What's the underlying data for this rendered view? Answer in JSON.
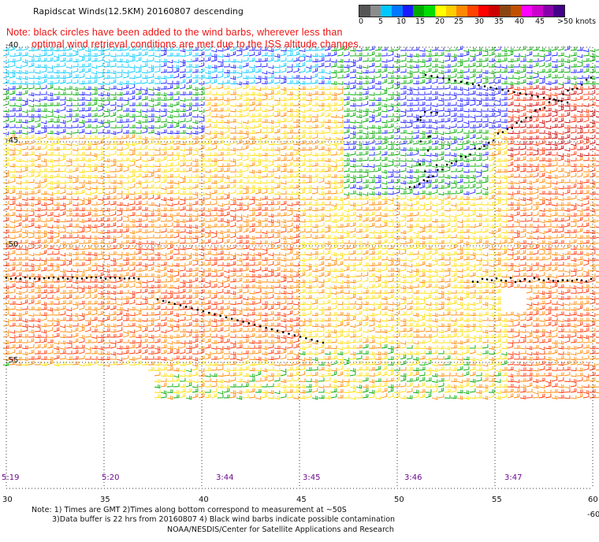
{
  "title": "Rapidscat Winds(12.5KM) 20160807 descending",
  "note": {
    "line1": "Note: black circles have been added to the wind barbs, wherever less than",
    "line2": "optimal wind retrieval conditions are met due to the ISS altitude changes."
  },
  "speed_scale": {
    "unit_label": ">50 knots",
    "labels": [
      "0",
      "5",
      "10",
      "15",
      "20",
      "25",
      "30",
      "35",
      "40",
      "45"
    ],
    "colors": [
      "#555555",
      "#8c8c8c",
      "#00c8ff",
      "#0078ff",
      "#1a1aff",
      "#00aa00",
      "#00dd00",
      "#ffff00",
      "#ffcc00",
      "#ff8800",
      "#ff4400",
      "#ff0000",
      "#cc0000",
      "#8b4513",
      "#c05000",
      "#ff00ff",
      "#cc00cc",
      "#8800aa",
      "#440088"
    ]
  },
  "latitude_labels": [
    "-40",
    "-45",
    "-50",
    "-55",
    "-60"
  ],
  "longitude_labels": [
    "30",
    "35",
    "40",
    "45",
    "50",
    "55",
    "60"
  ],
  "pass_times": [
    "5:19",
    "5:20",
    "3:44",
    "3:45",
    "3:46",
    "3:47"
  ],
  "footnotes": {
    "line1": "Note: 1) Times are GMT 2)Times along bottom correspond to measurement at ~50S",
    "line2": "3)Data buffer is 22 hrs from 20160807 4) Black wind barbs indicate possible contamination",
    "line3": "NOAA/NESDIS/Center for Satellite Applications and Research"
  },
  "map_data": {
    "lon_range": [
      30,
      60
    ],
    "lat_range": [
      -40,
      -60
    ],
    "gridlines": "dotted",
    "barb_speed_colors": [
      "#00c8ff",
      "#1a1aff",
      "#00aa00",
      "#ffdd00",
      "#ff8800",
      "#ff3300",
      "#cc0000"
    ]
  }
}
